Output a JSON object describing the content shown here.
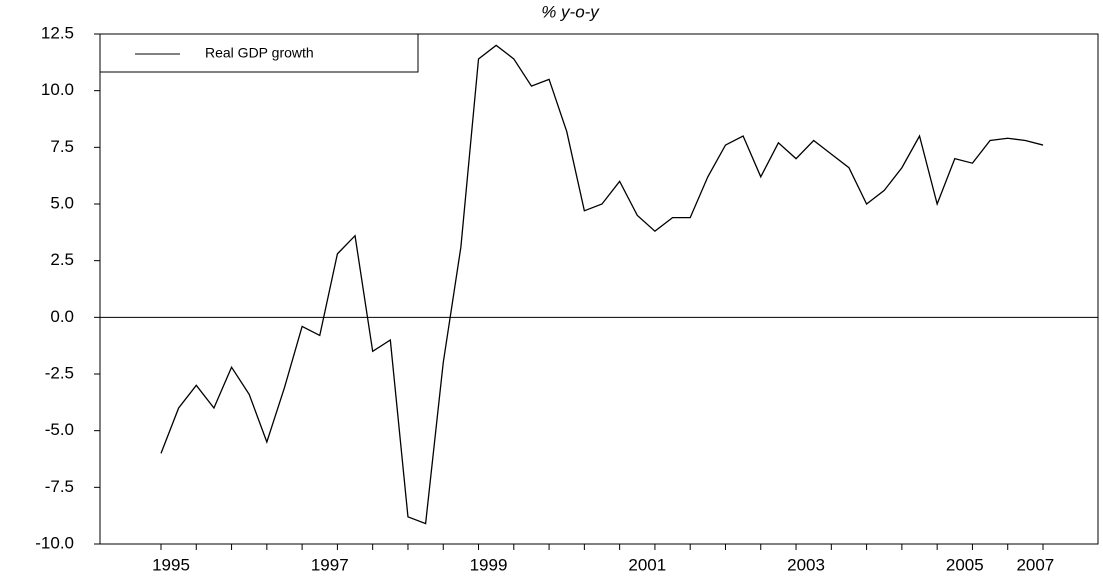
{
  "chart_data": {
    "type": "line",
    "title": "% y-o-y",
    "categories": [
      "1995",
      null,
      null,
      null,
      null,
      null,
      null,
      null,
      null,
      "1997",
      null,
      null,
      null,
      null,
      null,
      null,
      null,
      null,
      "1999",
      null,
      null,
      null,
      null,
      null,
      null,
      null,
      null,
      "2001",
      null,
      null,
      null,
      null,
      null,
      null,
      null,
      null,
      "2003",
      null,
      null,
      null,
      null,
      null,
      null,
      null,
      null,
      "2005",
      null,
      null,
      null,
      "2007",
      null
    ],
    "series": [
      {
        "name": "Real GDP growth",
        "color": "#000000",
        "values": [
          -6.0,
          -4.0,
          -3.0,
          -4.0,
          -2.2,
          -3.4,
          -5.5,
          -3.1,
          -0.4,
          -0.8,
          2.8,
          3.6,
          -1.5,
          -1.0,
          -8.8,
          -9.1,
          -2.0,
          3.1,
          11.4,
          12.0,
          11.4,
          10.2,
          10.5,
          8.2,
          4.7,
          5.0,
          6.0,
          4.5,
          3.8,
          4.4,
          4.4,
          6.2,
          7.6,
          8.0,
          6.2,
          7.7,
          7.0,
          7.8,
          7.2,
          6.6,
          5.0,
          5.6,
          6.6,
          8.0,
          5.0,
          7.0,
          6.8,
          7.8,
          7.9,
          7.8,
          7.6
        ]
      }
    ],
    "ylim": [
      -10,
      12.5
    ],
    "yticks": [
      {
        "value": -10,
        "label": "-10.0"
      },
      -7.5,
      {
        "value": -5,
        "label": "-5.0"
      },
      -2.5,
      {
        "value": 0,
        "label": "0.0"
      },
      2.5,
      {
        "value": 5,
        "label": "5.0"
      },
      7.5,
      {
        "value": 10,
        "label": "10.0"
      },
      12.5
    ],
    "zero_line": true,
    "legend": "top-left"
  }
}
